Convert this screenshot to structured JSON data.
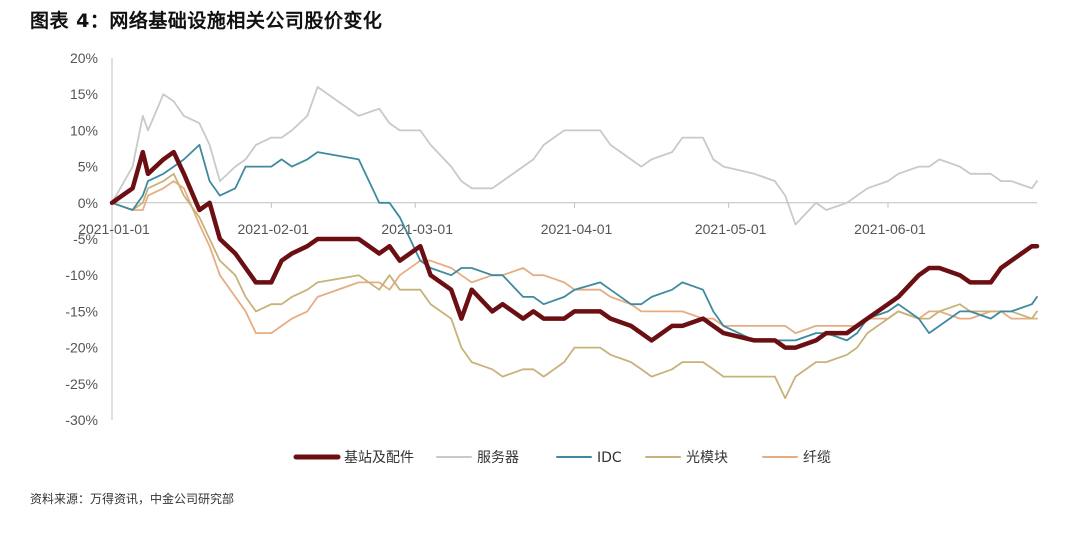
{
  "title": "图表 4：网络基础设施相关公司股价变化",
  "source": "资料来源：万得资讯，中金公司研究部",
  "chart_data": {
    "type": "line",
    "title": "图表 4：网络基础设施相关公司股价变化",
    "xlabel": "",
    "ylabel": "",
    "x_range": [
      "2021-01-01",
      "2021-06-30"
    ],
    "x_ticks": [
      "2021-01-01",
      "2021-02-01",
      "2021-03-01",
      "2021-04-01",
      "2021-05-01",
      "2021-06-01"
    ],
    "ylim": [
      -30,
      20
    ],
    "y_ticks": [
      20,
      15,
      10,
      5,
      0,
      -5,
      -10,
      -15,
      -20,
      -25,
      -30
    ],
    "y_tick_labels": [
      "20%",
      "15%",
      "10%",
      "5%",
      "0%",
      "-5%",
      "-10%",
      "-15%",
      "-20%",
      "-25%",
      "-30%"
    ],
    "grid": false,
    "legend_position": "bottom",
    "series": [
      {
        "name": "基站及配件",
        "color": "#6b0f12",
        "x": [
          "2021-01-01",
          "2021-01-05",
          "2021-01-07",
          "2021-01-08",
          "2021-01-11",
          "2021-01-13",
          "2021-01-15",
          "2021-01-18",
          "2021-01-20",
          "2021-01-22",
          "2021-01-25",
          "2021-01-27",
          "2021-01-29",
          "2021-02-01",
          "2021-02-03",
          "2021-02-05",
          "2021-02-08",
          "2021-02-10",
          "2021-02-18",
          "2021-02-22",
          "2021-02-24",
          "2021-02-26",
          "2021-03-02",
          "2021-03-04",
          "2021-03-08",
          "2021-03-10",
          "2021-03-12",
          "2021-03-16",
          "2021-03-18",
          "2021-03-22",
          "2021-03-24",
          "2021-03-26",
          "2021-03-30",
          "2021-04-01",
          "2021-04-06",
          "2021-04-08",
          "2021-04-12",
          "2021-04-14",
          "2021-04-16",
          "2021-04-20",
          "2021-04-22",
          "2021-04-26",
          "2021-04-28",
          "2021-04-30",
          "2021-05-06",
          "2021-05-10",
          "2021-05-12",
          "2021-05-14",
          "2021-05-18",
          "2021-05-20",
          "2021-05-24",
          "2021-05-26",
          "2021-05-28",
          "2021-06-01",
          "2021-06-03",
          "2021-06-07",
          "2021-06-09",
          "2021-06-11",
          "2021-06-15",
          "2021-06-17",
          "2021-06-21",
          "2021-06-23",
          "2021-06-25",
          "2021-06-29",
          "2021-06-30"
        ],
        "values": [
          0,
          2,
          7,
          4,
          6,
          7,
          4,
          -1,
          0,
          -5,
          -7,
          -9,
          -11,
          -11,
          -8,
          -7,
          -6,
          -5,
          -5,
          -7,
          -6,
          -8,
          -6,
          -10,
          -12,
          -16,
          -12,
          -15,
          -14,
          -16,
          -15,
          -16,
          -16,
          -15,
          -15,
          -16,
          -17,
          -18,
          -19,
          -17,
          -17,
          -16,
          -17,
          -18,
          -19,
          -19,
          -20,
          -20,
          -19,
          -18,
          -18,
          -17,
          -16,
          -14,
          -13,
          -10,
          -9,
          -9,
          -10,
          -11,
          -11,
          -9,
          -8,
          -6,
          -6
        ]
      },
      {
        "name": "服务器",
        "color": "#c9c9c9",
        "x": [
          "2021-01-01",
          "2021-01-05",
          "2021-01-07",
          "2021-01-08",
          "2021-01-11",
          "2021-01-13",
          "2021-01-15",
          "2021-01-18",
          "2021-01-20",
          "2021-01-22",
          "2021-01-25",
          "2021-01-27",
          "2021-01-29",
          "2021-02-01",
          "2021-02-03",
          "2021-02-05",
          "2021-02-08",
          "2021-02-10",
          "2021-02-18",
          "2021-02-22",
          "2021-02-24",
          "2021-02-26",
          "2021-03-02",
          "2021-03-04",
          "2021-03-08",
          "2021-03-10",
          "2021-03-12",
          "2021-03-16",
          "2021-03-18",
          "2021-03-22",
          "2021-03-24",
          "2021-03-26",
          "2021-03-30",
          "2021-04-01",
          "2021-04-06",
          "2021-04-08",
          "2021-04-12",
          "2021-04-14",
          "2021-04-16",
          "2021-04-20",
          "2021-04-22",
          "2021-04-26",
          "2021-04-28",
          "2021-04-30",
          "2021-05-06",
          "2021-05-10",
          "2021-05-12",
          "2021-05-14",
          "2021-05-18",
          "2021-05-20",
          "2021-05-24",
          "2021-05-26",
          "2021-05-28",
          "2021-06-01",
          "2021-06-03",
          "2021-06-07",
          "2021-06-09",
          "2021-06-11",
          "2021-06-15",
          "2021-06-17",
          "2021-06-21",
          "2021-06-23",
          "2021-06-25",
          "2021-06-29",
          "2021-06-30"
        ],
        "values": [
          0,
          5,
          12,
          10,
          15,
          14,
          12,
          11,
          8,
          3,
          5,
          6,
          8,
          9,
          9,
          10,
          12,
          16,
          12,
          13,
          11,
          10,
          10,
          8,
          5,
          3,
          2,
          2,
          3,
          5,
          6,
          8,
          10,
          10,
          10,
          8,
          6,
          5,
          6,
          7,
          9,
          9,
          6,
          5,
          4,
          3,
          1,
          -3,
          0,
          -1,
          0,
          1,
          2,
          3,
          4,
          5,
          5,
          6,
          5,
          4,
          4,
          3,
          3,
          2,
          3
        ]
      },
      {
        "name": "IDC",
        "color": "#3f8aa0",
        "x": [
          "2021-01-01",
          "2021-01-05",
          "2021-01-07",
          "2021-01-08",
          "2021-01-11",
          "2021-01-13",
          "2021-01-15",
          "2021-01-18",
          "2021-01-20",
          "2021-01-22",
          "2021-01-25",
          "2021-01-27",
          "2021-01-29",
          "2021-02-01",
          "2021-02-03",
          "2021-02-05",
          "2021-02-08",
          "2021-02-10",
          "2021-02-18",
          "2021-02-22",
          "2021-02-24",
          "2021-02-26",
          "2021-03-02",
          "2021-03-04",
          "2021-03-08",
          "2021-03-10",
          "2021-03-12",
          "2021-03-16",
          "2021-03-18",
          "2021-03-22",
          "2021-03-24",
          "2021-03-26",
          "2021-03-30",
          "2021-04-01",
          "2021-04-06",
          "2021-04-08",
          "2021-04-12",
          "2021-04-14",
          "2021-04-16",
          "2021-04-20",
          "2021-04-22",
          "2021-04-26",
          "2021-04-28",
          "2021-04-30",
          "2021-05-06",
          "2021-05-10",
          "2021-05-12",
          "2021-05-14",
          "2021-05-18",
          "2021-05-20",
          "2021-05-24",
          "2021-05-26",
          "2021-05-28",
          "2021-06-01",
          "2021-06-03",
          "2021-06-07",
          "2021-06-09",
          "2021-06-11",
          "2021-06-15",
          "2021-06-17",
          "2021-06-21",
          "2021-06-23",
          "2021-06-25",
          "2021-06-29",
          "2021-06-30"
        ],
        "values": [
          0,
          -1,
          1,
          3,
          4,
          5,
          6,
          8,
          3,
          1,
          2,
          5,
          5,
          5,
          6,
          5,
          6,
          7,
          6,
          0,
          0,
          -2,
          -8,
          -9,
          -10,
          -9,
          -9,
          -10,
          -10,
          -13,
          -13,
          -14,
          -13,
          -12,
          -11,
          -12,
          -14,
          -14,
          -13,
          -12,
          -11,
          -12,
          -15,
          -17,
          -19,
          -19,
          -19,
          -19,
          -18,
          -18,
          -19,
          -18,
          -16,
          -15,
          -14,
          -16,
          -18,
          -17,
          -15,
          -15,
          -16,
          -15,
          -15,
          -14,
          -13
        ]
      },
      {
        "name": "光模块",
        "color": "#c8b27a",
        "x": [
          "2021-01-01",
          "2021-01-05",
          "2021-01-07",
          "2021-01-08",
          "2021-01-11",
          "2021-01-13",
          "2021-01-15",
          "2021-01-18",
          "2021-01-20",
          "2021-01-22",
          "2021-01-25",
          "2021-01-27",
          "2021-01-29",
          "2021-02-01",
          "2021-02-03",
          "2021-02-05",
          "2021-02-08",
          "2021-02-10",
          "2021-02-18",
          "2021-02-22",
          "2021-02-24",
          "2021-02-26",
          "2021-03-02",
          "2021-03-04",
          "2021-03-08",
          "2021-03-10",
          "2021-03-12",
          "2021-03-16",
          "2021-03-18",
          "2021-03-22",
          "2021-03-24",
          "2021-03-26",
          "2021-03-30",
          "2021-04-01",
          "2021-04-06",
          "2021-04-08",
          "2021-04-12",
          "2021-04-14",
          "2021-04-16",
          "2021-04-20",
          "2021-04-22",
          "2021-04-26",
          "2021-04-28",
          "2021-04-30",
          "2021-05-06",
          "2021-05-10",
          "2021-05-12",
          "2021-05-14",
          "2021-05-18",
          "2021-05-20",
          "2021-05-24",
          "2021-05-26",
          "2021-05-28",
          "2021-06-01",
          "2021-06-03",
          "2021-06-07",
          "2021-06-09",
          "2021-06-11",
          "2021-06-15",
          "2021-06-17",
          "2021-06-21",
          "2021-06-23",
          "2021-06-25",
          "2021-06-29",
          "2021-06-30"
        ],
        "values": [
          0,
          -1,
          0,
          2,
          3,
          4,
          1,
          -2,
          -5,
          -8,
          -10,
          -13,
          -15,
          -14,
          -14,
          -13,
          -12,
          -11,
          -10,
          -12,
          -10,
          -12,
          -12,
          -14,
          -16,
          -20,
          -22,
          -23,
          -24,
          -23,
          -23,
          -24,
          -22,
          -20,
          -20,
          -21,
          -22,
          -23,
          -24,
          -23,
          -22,
          -22,
          -23,
          -24,
          -24,
          -24,
          -27,
          -24,
          -22,
          -22,
          -21,
          -20,
          -18,
          -16,
          -15,
          -16,
          -16,
          -15,
          -14,
          -15,
          -15,
          -15,
          -15,
          -16,
          -15
        ]
      },
      {
        "name": "纤缆",
        "color": "#e6ad82",
        "x": [
          "2021-01-01",
          "2021-01-05",
          "2021-01-07",
          "2021-01-08",
          "2021-01-11",
          "2021-01-13",
          "2021-01-15",
          "2021-01-18",
          "2021-01-20",
          "2021-01-22",
          "2021-01-25",
          "2021-01-27",
          "2021-01-29",
          "2021-02-01",
          "2021-02-03",
          "2021-02-05",
          "2021-02-08",
          "2021-02-10",
          "2021-02-18",
          "2021-02-22",
          "2021-02-24",
          "2021-02-26",
          "2021-03-02",
          "2021-03-04",
          "2021-03-08",
          "2021-03-10",
          "2021-03-12",
          "2021-03-16",
          "2021-03-18",
          "2021-03-22",
          "2021-03-24",
          "2021-03-26",
          "2021-03-30",
          "2021-04-01",
          "2021-04-06",
          "2021-04-08",
          "2021-04-12",
          "2021-04-14",
          "2021-04-16",
          "2021-04-20",
          "2021-04-22",
          "2021-04-26",
          "2021-04-28",
          "2021-04-30",
          "2021-05-06",
          "2021-05-10",
          "2021-05-12",
          "2021-05-14",
          "2021-05-18",
          "2021-05-20",
          "2021-05-24",
          "2021-05-26",
          "2021-05-28",
          "2021-06-01",
          "2021-06-03",
          "2021-06-07",
          "2021-06-09",
          "2021-06-11",
          "2021-06-15",
          "2021-06-17",
          "2021-06-21",
          "2021-06-23",
          "2021-06-25",
          "2021-06-29",
          "2021-06-30"
        ],
        "values": [
          0,
          -1,
          -1,
          1,
          2,
          3,
          2,
          -3,
          -6,
          -10,
          -13,
          -15,
          -18,
          -18,
          -17,
          -16,
          -15,
          -13,
          -11,
          -11,
          -12,
          -10,
          -8,
          -8,
          -9,
          -10,
          -11,
          -10,
          -10,
          -9,
          -10,
          -10,
          -11,
          -12,
          -12,
          -13,
          -14,
          -15,
          -15,
          -15,
          -15,
          -16,
          -16,
          -17,
          -17,
          -17,
          -17,
          -18,
          -17,
          -17,
          -17,
          -17,
          -16,
          -16,
          -15,
          -16,
          -15,
          -15,
          -16,
          -16,
          -15,
          -15,
          -16,
          -16,
          -16
        ]
      }
    ]
  }
}
